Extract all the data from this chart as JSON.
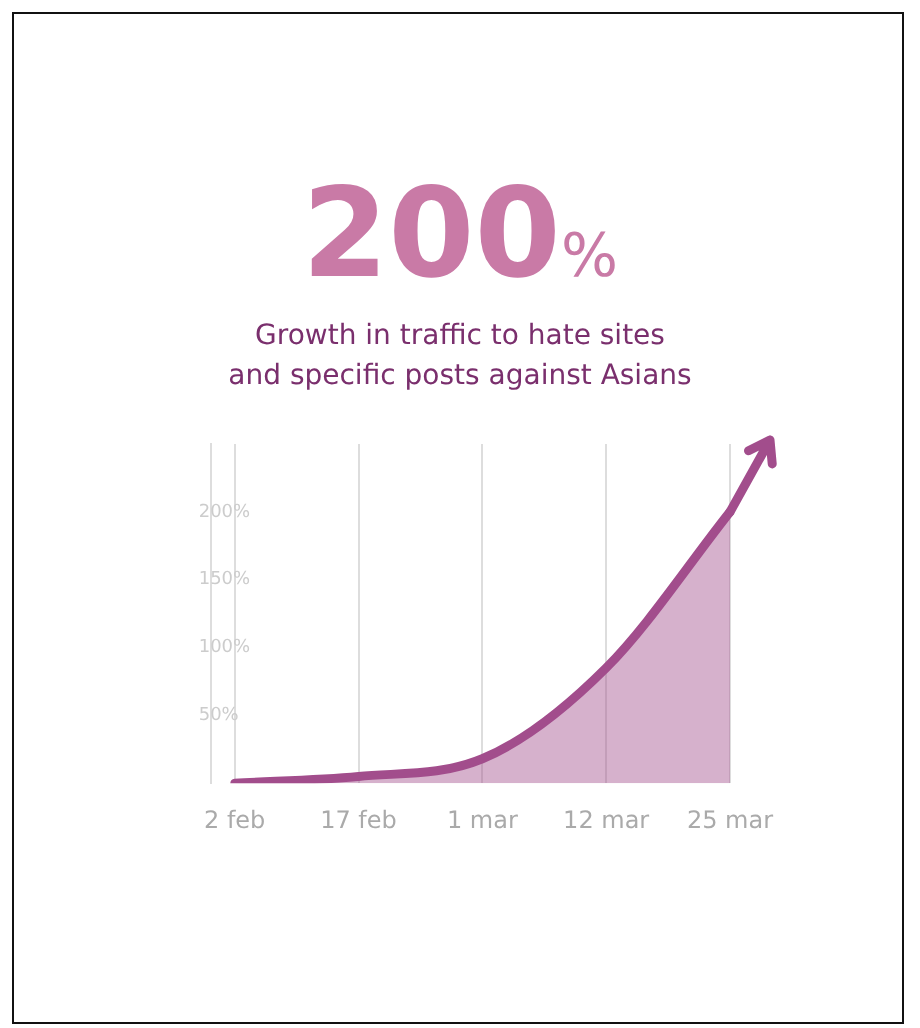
{
  "chart_data": {
    "type": "area",
    "title": "200%",
    "subtitle": "Growth in traffic to hate sites\nand specific posts against Asians",
    "categories": [
      "2 feb",
      "17 feb",
      "1 mar",
      "12 mar",
      "25 mar"
    ],
    "series": [
      {
        "color": "#a24d8c",
        "values": [
          0,
          5,
          18,
          85,
          200
        ]
      }
    ],
    "ylim": [
      0,
      250
    ],
    "yticks": [
      {
        "value": 50,
        "label": "50%"
      },
      {
        "value": 100,
        "label": "100%"
      },
      {
        "value": 150,
        "label": "150%"
      },
      {
        "value": 200,
        "label": "200%"
      }
    ],
    "grid": "x",
    "legend": false
  }
}
